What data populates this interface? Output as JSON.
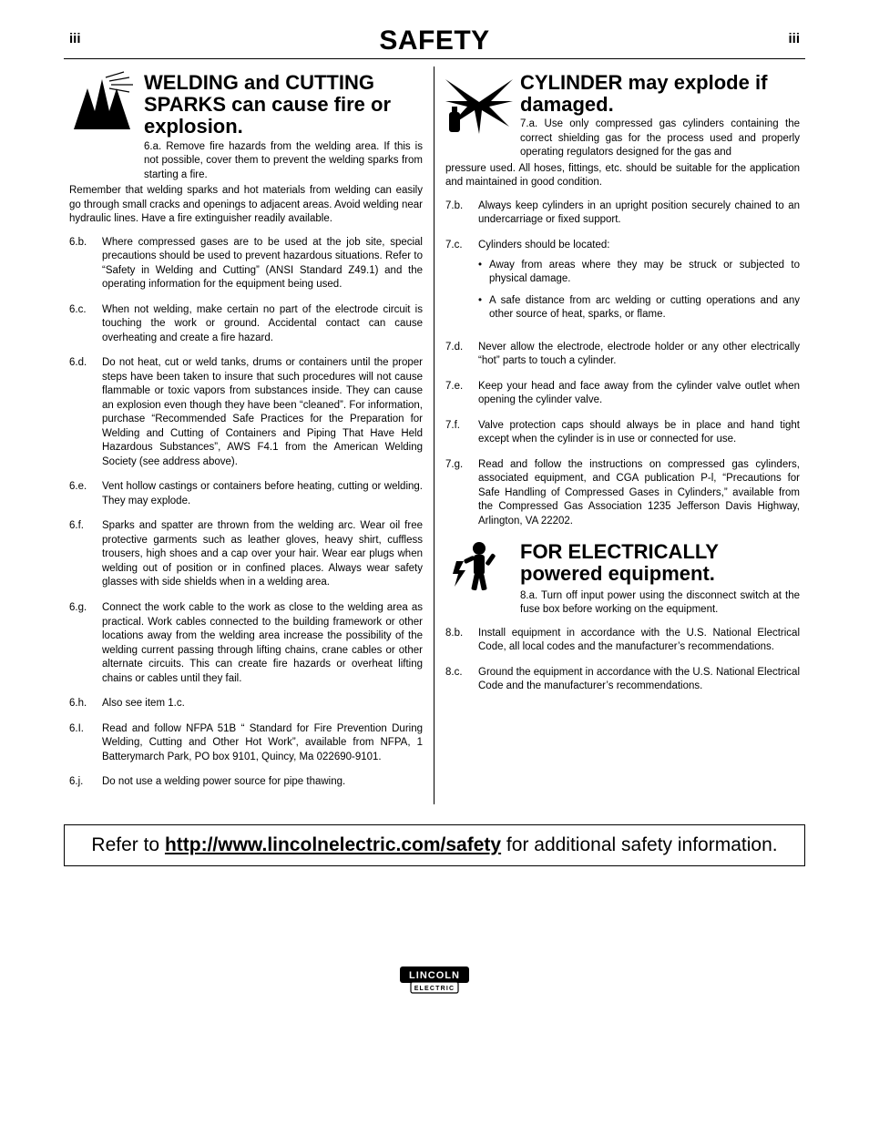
{
  "page": {
    "num": "iii",
    "title": "SAFETY"
  },
  "left": {
    "title": "WELDING and CUTTING SPARKS can cause fire or explosion.",
    "first": {
      "num": "6.a.",
      "lead": "Remove fire hazards from the welding area. If this is not possible, cover them to prevent the welding sparks from starting a fire.",
      "cont": "Remember that welding sparks and hot materials from welding can easily go through small cracks and openings to adjacent areas. Avoid welding near hydraulic lines. Have a fire extinguisher readily available."
    },
    "items": [
      {
        "num": "6.b.",
        "text": "Where compressed gases are to be used at the job site, special precautions should be used to prevent hazardous situations. Refer to “Safety in Welding and Cutting” (ANSI Standard Z49.1) and the operating information for the equipment being used."
      },
      {
        "num": "6.c.",
        "text": "When not welding, make certain no part of the electrode circuit is touching the work or ground. Accidental contact can cause overheating and create a fire hazard."
      },
      {
        "num": "6.d.",
        "text": "Do not heat, cut or weld tanks, drums or containers until the proper steps have been taken to insure that such procedures will not cause flammable or toxic vapors from substances inside. They can cause an explosion even though they have been “cleaned”. For information, purchase “Recommended Safe Practices for the Preparation for Welding and Cutting of Containers and Piping That Have Held Hazardous Substances”, AWS F4.1 from the American Welding Society (see address above)."
      },
      {
        "num": "6.e.",
        "text": "Vent hollow castings or containers before heating, cutting or welding. They may explode."
      },
      {
        "num": "6.f.",
        "text": "Sparks and spatter are thrown from the welding arc. Wear oil free protective garments such as leather gloves, heavy shirt, cuffless trousers, high shoes and a cap over your hair. Wear ear plugs when welding out of position or in confined places. Always wear safety glasses with side shields when in a welding area."
      },
      {
        "num": "6.g.",
        "text": "Connect the work cable to the work as close to the welding area as practical. Work cables connected to the building framework or other locations away from the welding area increase the possibility of the welding current passing through lifting chains, crane cables or other alternate circuits. This can create fire hazards or overheat lifting chains or cables until they fail."
      },
      {
        "num": "6.h.",
        "text": "Also see item 1.c."
      },
      {
        "num": "6.I.",
        "text": "Read and follow NFPA 51B “ Standard for Fire Prevention During Welding, Cutting and Other Hot Work”, available from NFPA, 1 Batterymarch Park, PO box 9101, Quincy, Ma 022690-9101."
      },
      {
        "num": "6.j.",
        "text": "Do not use a welding power source for pipe thawing."
      }
    ]
  },
  "right_a": {
    "title": "CYLINDER may explode if damaged.",
    "first": {
      "num": "7.a.",
      "lead": "Use only compressed gas cylinders containing the correct shielding gas for the process used and properly operating regulators designed for the gas and",
      "cont": "pressure used. All hoses, fittings, etc. should be suitable for the application and maintained in good condition."
    },
    "items": [
      {
        "num": "7.b.",
        "text": "Always keep cylinders in an upright position securely chained to an undercarriage or fixed support."
      },
      {
        "num": "7.c.",
        "text": "Cylinders should be located:",
        "subs": [
          "Away from areas where they may be struck or subjected to physical damage.",
          "A safe distance from arc welding or cutting operations and any other source of heat, sparks, or flame."
        ]
      },
      {
        "num": "7.d.",
        "text": "Never allow the electrode, electrode holder or any other electrically “hot” parts to touch a cylinder."
      },
      {
        "num": "7.e.",
        "text": "Keep your head and face away from the cylinder valve outlet when opening the cylinder valve."
      },
      {
        "num": "7.f.",
        "text": "Valve protection caps should always be in place and hand tight except when the cylinder is in use or connected for use."
      },
      {
        "num": "7.g.",
        "text": "Read and follow the instructions on compressed gas cylinders, associated equipment, and CGA publication P-l, “Precautions for Safe Handling of Compressed Gases in Cylinders,” available from the Compressed Gas Association 1235 Jefferson Davis Highway, Arlington, VA 22202."
      }
    ]
  },
  "right_b": {
    "title": "FOR ELECTRICALLY powered equipment.",
    "first": {
      "num": "8.a.",
      "lead": "Turn off input power using the disconnect switch at the fuse box before working on the equipment."
    },
    "items": [
      {
        "num": "8.b.",
        "text": "Install equipment in accordance with the U.S. National Electrical Code, all local codes and the manufacturer’s recommendations."
      },
      {
        "num": "8.c.",
        "text": "Ground the equipment in accordance with the U.S. National Electrical Code and the manufacturer’s recommendations."
      }
    ]
  },
  "refer": {
    "pre": "Refer to ",
    "link": "http://www.lincolnelectric.com/safety",
    "post": " for additional safety information."
  },
  "logo": {
    "brand": "LINCOLN",
    "sub": "ELECTRIC"
  }
}
